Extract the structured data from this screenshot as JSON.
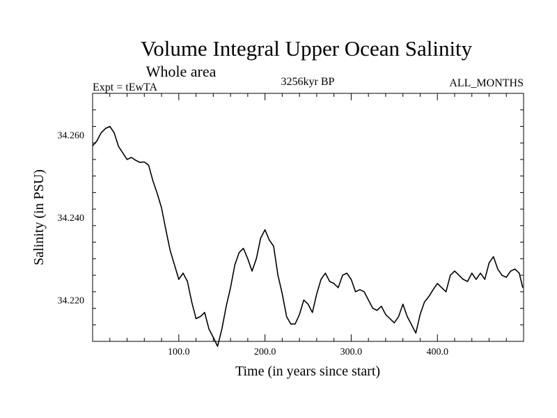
{
  "chart_data": {
    "type": "line",
    "title": "Volume Integral Upper Ocean Salinity",
    "subtitle": "Whole area",
    "left_label": "Expt = tEwTA",
    "center_label": "3256kyr BP",
    "right_label": "ALL_MONTHS",
    "xlabel": "Time (in years since start)",
    "ylabel": "Salinity (in PSU)",
    "xlim": [
      0,
      500
    ],
    "ylim": [
      34.21,
      34.27
    ],
    "xticks": [
      100,
      200,
      300,
      400
    ],
    "xtick_labels": [
      "100.0",
      "200.0",
      "300.0",
      "400.0"
    ],
    "yticks": [
      34.22,
      34.24,
      34.26
    ],
    "ytick_labels": [
      "34.220",
      "34.240",
      "34.260"
    ],
    "grid": false,
    "series": [
      {
        "name": "Salinity",
        "color": "#000000",
        "x": [
          0,
          5,
          10,
          15,
          20,
          25,
          30,
          35,
          40,
          45,
          50,
          55,
          60,
          65,
          70,
          75,
          80,
          85,
          90,
          95,
          100,
          105,
          110,
          115,
          120,
          125,
          130,
          135,
          140,
          145,
          150,
          155,
          160,
          165,
          170,
          175,
          180,
          185,
          190,
          195,
          200,
          205,
          210,
          215,
          220,
          225,
          230,
          235,
          240,
          245,
          250,
          255,
          260,
          265,
          270,
          275,
          280,
          285,
          290,
          295,
          300,
          305,
          310,
          315,
          320,
          325,
          330,
          335,
          340,
          345,
          350,
          355,
          360,
          365,
          370,
          375,
          380,
          385,
          390,
          395,
          400,
          405,
          410,
          415,
          420,
          425,
          430,
          435,
          440,
          445,
          450,
          455,
          460,
          465,
          470,
          475,
          480,
          485,
          490,
          495,
          499
        ],
        "values": [
          34.2573,
          34.2585,
          34.2605,
          34.2615,
          34.262,
          34.2605,
          34.2572,
          34.2556,
          34.254,
          34.2545,
          34.2538,
          34.2533,
          34.2534,
          34.2526,
          34.2488,
          34.2458,
          34.2423,
          34.237,
          34.232,
          34.2285,
          34.225,
          34.2265,
          34.2245,
          34.2195,
          34.2155,
          34.216,
          34.217,
          34.213,
          34.211,
          34.2088,
          34.213,
          34.2185,
          34.223,
          34.2285,
          34.2315,
          34.2325,
          34.23,
          34.227,
          34.23,
          34.235,
          34.237,
          34.2345,
          34.233,
          34.226,
          34.2215,
          34.216,
          34.2142,
          34.2142,
          34.2165,
          34.22,
          34.219,
          34.217,
          34.2215,
          34.225,
          34.2265,
          34.2245,
          34.224,
          34.223,
          34.226,
          34.2265,
          34.225,
          34.222,
          34.2225,
          34.222,
          34.22,
          34.218,
          34.2175,
          34.2185,
          34.2165,
          34.2155,
          34.2145,
          34.216,
          34.219,
          34.216,
          34.214,
          34.212,
          34.2165,
          34.2195,
          34.2208,
          34.2225,
          34.224,
          34.223,
          34.222,
          34.226,
          34.227,
          34.226,
          34.225,
          34.2245,
          34.2265,
          34.225,
          34.2265,
          34.225,
          34.229,
          34.2305,
          34.2275,
          34.226,
          34.2255,
          34.227,
          34.2275,
          34.2265,
          34.223
        ]
      }
    ]
  }
}
